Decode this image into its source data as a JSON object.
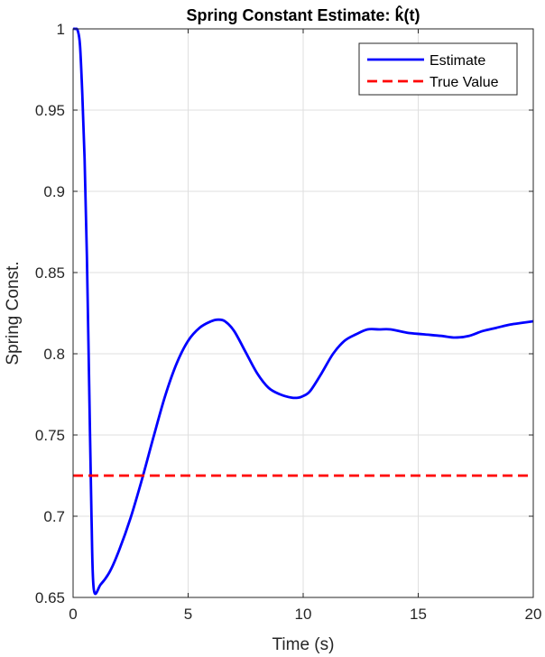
{
  "chart_data": {
    "type": "line",
    "title": "Spring Constant Estimate: k̂(t)",
    "xlabel": "Time (s)",
    "ylabel": "Spring Const.",
    "xlim": [
      0,
      20
    ],
    "ylim": [
      0.65,
      1.0
    ],
    "xticks": [
      0,
      5,
      10,
      15,
      20
    ],
    "xtick_labels": [
      "0",
      "5",
      "10",
      "15",
      "20"
    ],
    "yticks": [
      0.65,
      0.7,
      0.75,
      0.8,
      0.85,
      0.9,
      0.95,
      1.0
    ],
    "ytick_labels": [
      "0.65",
      "0.7",
      "0.75",
      "0.8",
      "0.85",
      "0.9",
      "0.95",
      "1"
    ],
    "grid": true,
    "legend_position": "top-right",
    "series": [
      {
        "name": "Estimate",
        "color": "#0000ff",
        "style": "solid",
        "x": [
          0,
          0.1,
          0.2,
          0.3,
          0.4,
          0.5,
          0.6,
          0.7,
          0.8,
          0.9,
          1.2,
          1.6,
          2.0,
          2.5,
          3.0,
          3.5,
          4.0,
          4.5,
          5.0,
          5.5,
          6.0,
          6.3,
          6.6,
          7.0,
          7.5,
          8.0,
          8.5,
          9.0,
          9.5,
          9.8,
          10.0,
          10.3,
          10.8,
          11.3,
          11.8,
          12.3,
          12.8,
          13.3,
          13.8,
          14.5,
          15.2,
          16.0,
          16.6,
          17.2,
          17.8,
          18.4,
          19.0,
          19.5,
          20.0
        ],
        "y": [
          1.0,
          1.0,
          0.999,
          0.99,
          0.96,
          0.92,
          0.86,
          0.78,
          0.7,
          0.655,
          0.658,
          0.666,
          0.679,
          0.699,
          0.723,
          0.749,
          0.774,
          0.794,
          0.808,
          0.816,
          0.82,
          0.821,
          0.82,
          0.814,
          0.801,
          0.788,
          0.779,
          0.775,
          0.773,
          0.773,
          0.774,
          0.777,
          0.788,
          0.8,
          0.808,
          0.812,
          0.815,
          0.815,
          0.815,
          0.813,
          0.812,
          0.811,
          0.81,
          0.811,
          0.814,
          0.816,
          0.818,
          0.819,
          0.82
        ]
      },
      {
        "name": "True Value",
        "color": "#ff0000",
        "style": "dashed",
        "x": [
          0,
          20
        ],
        "y": [
          0.725,
          0.725
        ]
      }
    ]
  }
}
